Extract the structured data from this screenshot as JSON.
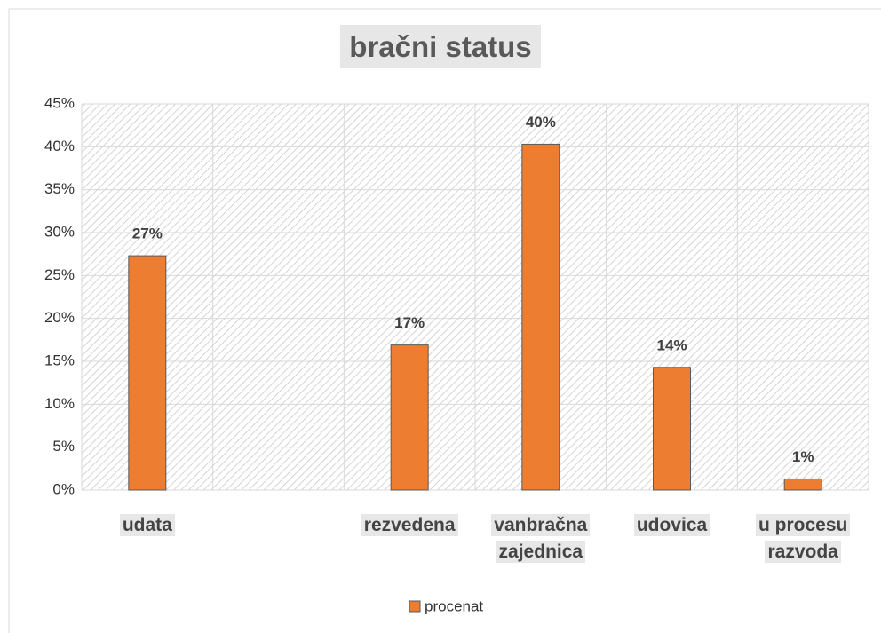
{
  "chart_data": {
    "type": "bar",
    "title": "bračni status",
    "categories": [
      "udata",
      null,
      "rezvedena",
      "vanbračna zajednica",
      "udovica",
      "u procesu razvoda"
    ],
    "series": [
      {
        "name": "procenat",
        "color": "#ed7d31",
        "values": [
          27.3,
          null,
          16.9,
          40.3,
          14.3,
          1.3
        ],
        "value_labels": [
          "27%",
          null,
          "17%",
          "40%",
          "14%",
          "1%"
        ]
      }
    ],
    "ylim": [
      0,
      45
    ],
    "yticks": [
      {
        "value": 0,
        "label": "0%"
      },
      {
        "value": 5,
        "label": "5%"
      },
      {
        "value": 10,
        "label": "10%"
      },
      {
        "value": 15,
        "label": "15%"
      },
      {
        "value": 20,
        "label": "20%"
      },
      {
        "value": 25,
        "label": "25%"
      },
      {
        "value": 30,
        "label": "30%"
      },
      {
        "value": 35,
        "label": "35%"
      },
      {
        "value": 40,
        "label": "40%"
      },
      {
        "value": 45,
        "label": "45%"
      }
    ],
    "grid": true,
    "legend": "bottom"
  }
}
